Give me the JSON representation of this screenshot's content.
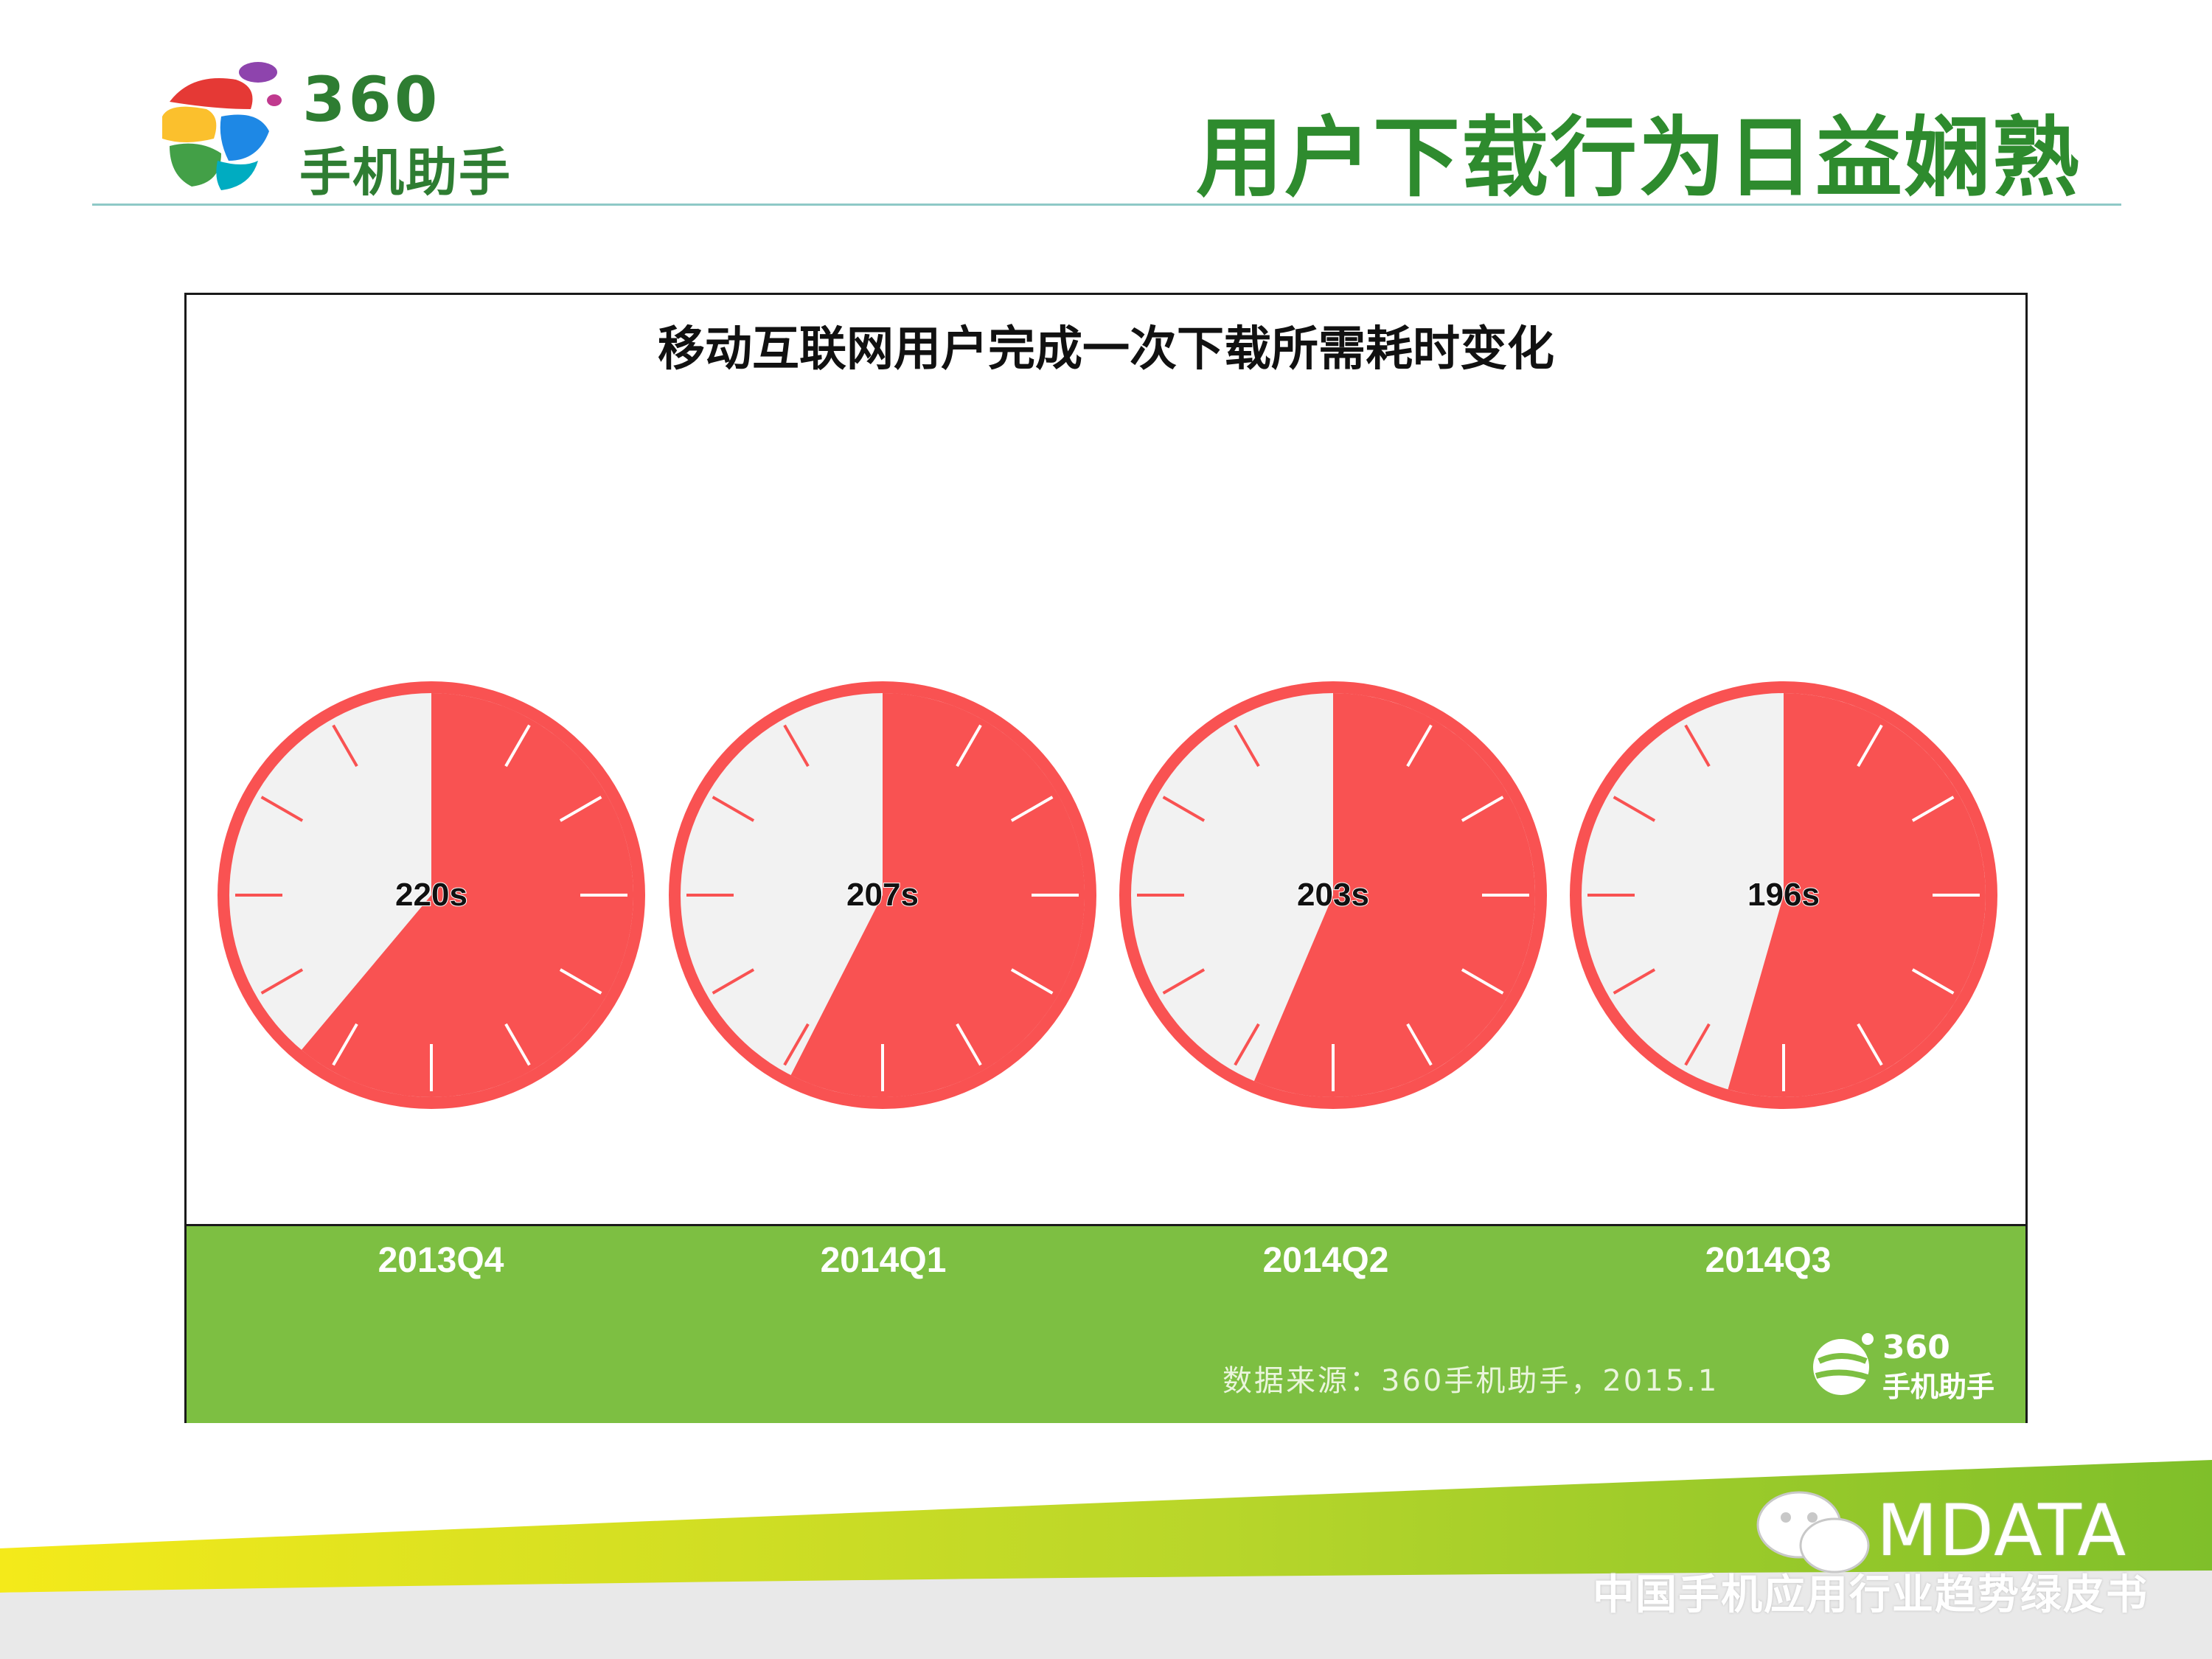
{
  "header": {
    "logo_number": "360",
    "logo_text": "手机助手",
    "page_title": "用户下载行为日益娴熟"
  },
  "chart_data": {
    "type": "clock-gauge",
    "title": "移动互联网用户完成一次下载所需耗时变化",
    "unit": "s",
    "full_scale": 360,
    "categories": [
      "2013Q4",
      "2014Q1",
      "2014Q2",
      "2014Q3"
    ],
    "values": [
      220,
      207,
      203,
      196
    ],
    "labels": [
      "220s",
      "207s",
      "203s",
      "196s"
    ],
    "colors": {
      "filled": "#f95252",
      "empty": "#f2f2f2",
      "tick": "#ffffff",
      "band": "#7dbf42"
    }
  },
  "source": "数据来源：360手机助手，2015.1",
  "band_logo": {
    "number": "360",
    "text": "手机助手"
  },
  "footer": {
    "brand": "MDATA",
    "subtitle": "中国手机应用行业趋势绿皮书"
  }
}
